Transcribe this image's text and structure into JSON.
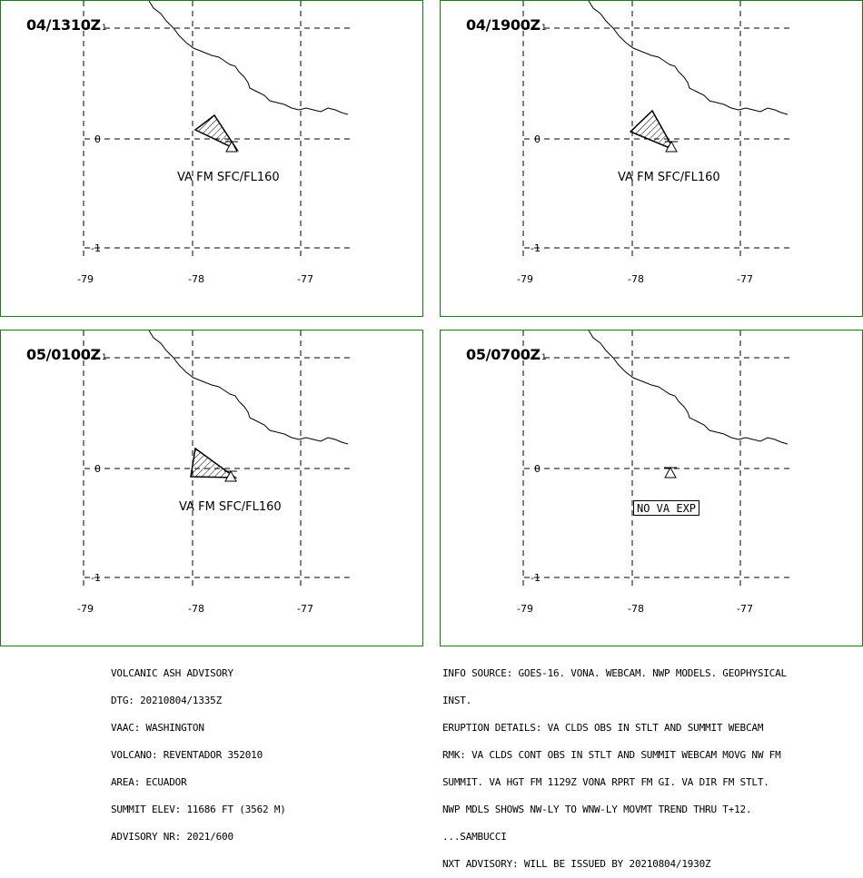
{
  "panels": [
    {
      "id": "p1",
      "time": "04/1310Z",
      "ash": true,
      "label": "VA FM SFC/FL160"
    },
    {
      "id": "p2",
      "time": "04/1900Z",
      "ash": true,
      "label": "VA FM SFC/FL160"
    },
    {
      "id": "p3",
      "time": "05/0100Z",
      "ash": true,
      "label": "VA FM SFC/FL160"
    },
    {
      "id": "p4",
      "time": "05/0700Z",
      "ash": false,
      "label": "NO VA EXP"
    }
  ],
  "grid": {
    "lon_labels": [
      "-79",
      "-78",
      "-77"
    ],
    "lat_labels": [
      "0",
      "-1"
    ]
  },
  "advisory": {
    "lines": [
      "VOLCANIC ASH ADVISORY",
      "DTG: 20210804/1335Z",
      "VAAC: WASHINGTON",
      "VOLCANO: REVENTADOR 352010",
      "AREA: ECUADOR",
      "SUMMIT ELEV: 11686 FT (3562 M)",
      "ADVISORY NR: 2021/600"
    ]
  },
  "info": {
    "lines": [
      "INFO SOURCE: GOES-16. VONA. WEBCAM. NWP MODELS. GEOPHYSICAL",
      "INST.",
      "ERUPTION DETAILS: VA CLDS OBS IN STLT AND SUMMIT WEBCAM",
      "RMK: VA CLDS CONT OBS IN STLT AND SUMMIT WEBCAM MOVG NW FM",
      "SUMMIT. VA HGT FM 1129Z VONA RPRT FM GI. VA DIR FM STLT.",
      "NWP MDLS SHOWS NW-LY TO WNW-LY MOVMT TREND THRU T+12.",
      "...SAMBUCCI",
      "NXT ADVISORY: WILL BE ISSUED BY 20210804/1930Z"
    ]
  }
}
